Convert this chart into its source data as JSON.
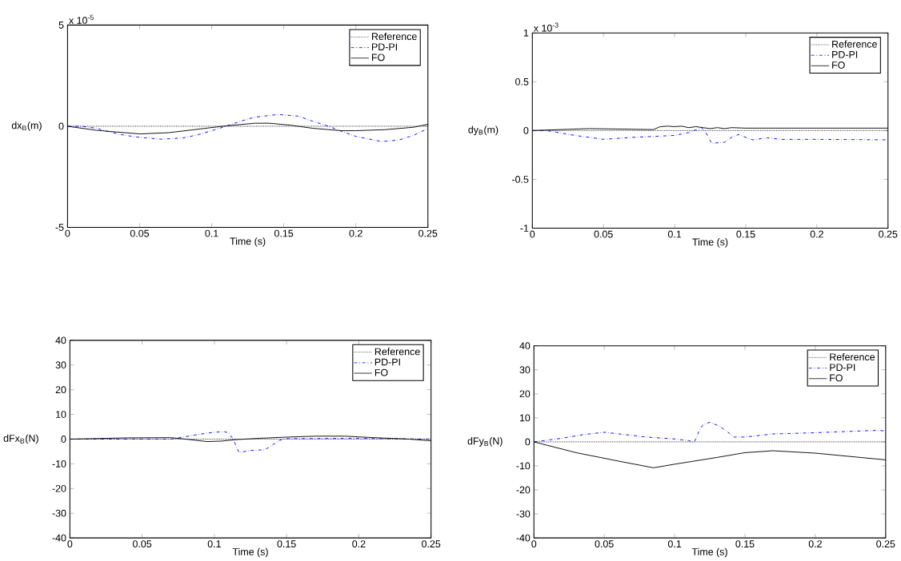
{
  "chart_data": [
    {
      "type": "line",
      "xlabel": "Time (s)",
      "ylabel": "dx$_{B}$(m)",
      "annotations": [
        "x 10$^{-5}$"
      ],
      "xlim": [
        0,
        0.25
      ],
      "ylim": [
        -5,
        5
      ],
      "xticks": [
        0,
        0.05,
        0.1,
        0.15,
        0.2,
        0.25
      ],
      "yticks": [
        -5,
        0,
        5
      ],
      "legend": "top right",
      "series": [
        {
          "name": "Reference",
          "color": "#000000",
          "line_style": "dotted",
          "x": [
            0,
            0.25
          ],
          "values": [
            0,
            0
          ]
        },
        {
          "name": "PD-PI",
          "color": "#0000ff",
          "line_style": "dashdot",
          "x": [
            0,
            0.01,
            0.02,
            0.03,
            0.04,
            0.05,
            0.065,
            0.08,
            0.09,
            0.1,
            0.11,
            0.12,
            0.13,
            0.146,
            0.16,
            0.17,
            0.181,
            0.19,
            0.2,
            0.218,
            0.23,
            0.24,
            0.25
          ],
          "values": [
            0,
            0,
            -0.1,
            -0.3,
            -0.45,
            -0.55,
            -0.64,
            -0.58,
            -0.43,
            -0.22,
            0,
            0.25,
            0.45,
            0.58,
            0.5,
            0.25,
            0,
            -0.25,
            -0.5,
            -0.76,
            -0.68,
            -0.45,
            -0.11
          ]
        },
        {
          "name": "FO",
          "color": "#000000",
          "line_style": "solid",
          "x": [
            0,
            0.02,
            0.05,
            0.07,
            0.09,
            0.11,
            0.13,
            0.14,
            0.155,
            0.17,
            0.19,
            0.2,
            0.22,
            0.24,
            0.25
          ],
          "values": [
            0,
            -0.2,
            -0.38,
            -0.32,
            -0.15,
            0.02,
            0.15,
            0.15,
            0.05,
            -0.1,
            -0.22,
            -0.22,
            -0.17,
            -0.05,
            0.1
          ]
        }
      ]
    },
    {
      "type": "line",
      "xlabel": "Time (s)",
      "ylabel": "dy$_{B}$(m)",
      "annotations": [
        "x 10$^{-3}$"
      ],
      "xlim": [
        0,
        0.25
      ],
      "ylim": [
        -1,
        1
      ],
      "xticks": [
        0,
        0.05,
        0.1,
        0.15,
        0.2,
        0.25
      ],
      "yticks": [
        -1,
        -0.5,
        0,
        0.5,
        1
      ],
      "legend": "top right",
      "series": [
        {
          "name": "Reference",
          "color": "#000000",
          "line_style": "dotted",
          "x": [
            0,
            0.25
          ],
          "values": [
            0,
            0
          ]
        },
        {
          "name": "PD-PI",
          "color": "#0000ff",
          "line_style": "dashdot",
          "x": [
            0,
            0.01,
            0.03,
            0.05,
            0.07,
            0.1,
            0.11,
            0.119,
            0.122,
            0.126,
            0.135,
            0.14,
            0.145,
            0.15,
            0.155,
            0.165,
            0.175,
            0.2,
            0.25
          ],
          "values": [
            0,
            0,
            -0.05,
            -0.09,
            -0.07,
            -0.05,
            -0.02,
            0.03,
            -0.02,
            -0.13,
            -0.12,
            -0.07,
            -0.04,
            -0.07,
            -0.095,
            -0.075,
            -0.09,
            -0.09,
            -0.095
          ]
        },
        {
          "name": "FO",
          "color": "#000000",
          "line_style": "solid",
          "x": [
            0,
            0.02,
            0.04,
            0.085,
            0.09,
            0.095,
            0.1,
            0.105,
            0.11,
            0.115,
            0.12,
            0.125,
            0.13,
            0.135,
            0.14,
            0.15,
            0.2,
            0.25
          ],
          "values": [
            0,
            0.01,
            0.02,
            0.01,
            0.04,
            0.045,
            0.04,
            0.045,
            0.03,
            0.04,
            0.03,
            0.02,
            0.03,
            0.02,
            0.03,
            0.025,
            0.025,
            0.025
          ]
        }
      ]
    },
    {
      "type": "line",
      "xlabel": "Time (s)",
      "ylabel": "dFx$_{B}$(N)",
      "xlim": [
        0,
        0.25
      ],
      "ylim": [
        -40,
        40
      ],
      "xticks": [
        0,
        0.05,
        0.1,
        0.15,
        0.2,
        0.25
      ],
      "yticks": [
        -40,
        -30,
        -20,
        -10,
        0,
        10,
        20,
        30,
        40
      ],
      "legend": "top right",
      "series": [
        {
          "name": "Reference",
          "color": "#000000",
          "line_style": "dotted",
          "x": [
            0,
            0.25
          ],
          "values": [
            0,
            0
          ]
        },
        {
          "name": "PD-PI",
          "color": "#0000ff",
          "line_style": "dashdot",
          "x": [
            0,
            0.07,
            0.08,
            0.09,
            0.1,
            0.107,
            0.11,
            0.113,
            0.117,
            0.125,
            0.135,
            0.14,
            0.145,
            0.15,
            0.2,
            0.25
          ],
          "values": [
            0,
            0,
            1,
            2,
            2.8,
            3,
            2.5,
            0,
            -5.4,
            -4.6,
            -4.3,
            -2.5,
            -0.5,
            0.2,
            0.3,
            0
          ]
        },
        {
          "name": "FO",
          "color": "#000000",
          "line_style": "solid",
          "x": [
            0,
            0.04,
            0.07,
            0.08,
            0.095,
            0.105,
            0.115,
            0.13,
            0.15,
            0.17,
            0.19,
            0.21,
            0.235,
            0.25
          ],
          "values": [
            0,
            0.5,
            0.6,
            0,
            -1,
            -0.8,
            -0.2,
            0.3,
            0.8,
            1.2,
            1.2,
            0.6,
            0,
            -0.7
          ]
        }
      ]
    },
    {
      "type": "line",
      "xlabel": "Time (s)",
      "ylabel": "dFy$_{B}$(N)",
      "xlim": [
        0,
        0.25
      ],
      "ylim": [
        -40,
        40
      ],
      "xticks": [
        0,
        0.05,
        0.1,
        0.15,
        0.2,
        0.25
      ],
      "yticks": [
        -40,
        -30,
        -20,
        -10,
        0,
        10,
        20,
        30,
        40
      ],
      "legend": "top right",
      "series": [
        {
          "name": "Reference",
          "color": "#000000",
          "line_style": "dotted",
          "x": [
            0,
            0.25
          ],
          "values": [
            0,
            0
          ]
        },
        {
          "name": "PD-PI",
          "color": "#0000ff",
          "line_style": "dashdot",
          "x": [
            0,
            0.02,
            0.035,
            0.05,
            0.065,
            0.08,
            0.1,
            0.11,
            0.114,
            0.117,
            0.12,
            0.125,
            0.132,
            0.138,
            0.142,
            0.15,
            0.17,
            0.2,
            0.23,
            0.245,
            0.25
          ],
          "values": [
            0,
            1.5,
            3,
            4,
            3,
            2,
            1.2,
            0.5,
            -0.2,
            4,
            7,
            8.2,
            6.5,
            4,
            2,
            2,
            3.3,
            3.8,
            4.5,
            4.8,
            4.5
          ]
        },
        {
          "name": "FO",
          "color": "#000000",
          "line_style": "solid",
          "x": [
            0,
            0.03,
            0.06,
            0.085,
            0.1,
            0.13,
            0.15,
            0.17,
            0.2,
            0.25
          ],
          "values": [
            0,
            -4.5,
            -8,
            -10.8,
            -9.3,
            -6.5,
            -4.5,
            -3.7,
            -4.7,
            -7.5
          ]
        }
      ]
    }
  ]
}
